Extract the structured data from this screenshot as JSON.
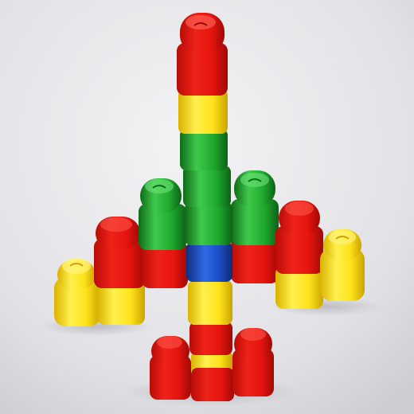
{
  "photo": {
    "subject": "toy-building-block-rocket",
    "colors": {
      "backdrop_light": "#f1f1f3",
      "backdrop_dark": "#cfcfd4",
      "red": "#e5140f",
      "red_dark": "#b50b08",
      "yellow": "#ffe21a",
      "yellow_dark": "#d8b400",
      "green": "#1faa2e",
      "green_dark": "#127a1c",
      "blue": "#1b4fc8",
      "blue_dark": "#12358c"
    }
  }
}
